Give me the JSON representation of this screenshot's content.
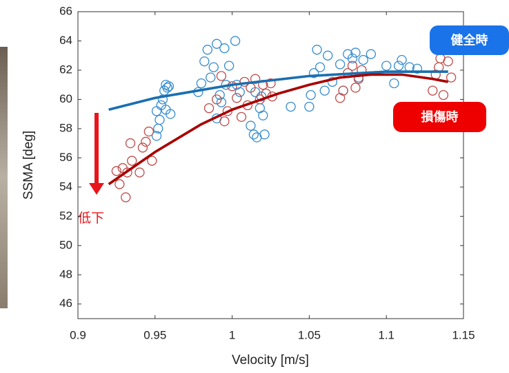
{
  "chart_data": {
    "type": "scatter",
    "x_label": "Velocity [m/s]",
    "y_label": "SSMA [deg]",
    "xlim": [
      0.9,
      1.15
    ],
    "xticks": [
      0.9,
      0.95,
      1,
      1.05,
      1.1,
      1.15
    ],
    "ylim": [
      45,
      66
    ],
    "yticks": [
      46,
      48,
      50,
      52,
      54,
      56,
      58,
      60,
      62,
      64,
      66
    ],
    "annotation": "低下",
    "series": [
      {
        "name": "健全時",
        "color": "#3b8fd1",
        "type": "scatter",
        "x": [
          0.951,
          0.952,
          0.953,
          0.951,
          0.954,
          0.955,
          0.956,
          0.957,
          0.958,
          0.959,
          0.96,
          0.957,
          0.978,
          0.98,
          0.982,
          0.984,
          0.986,
          0.988,
          0.99,
          0.992,
          0.993,
          0.995,
          0.996,
          0.998,
          1.002,
          1.003,
          1.005,
          0.99,
          1.012,
          1.014,
          1.016,
          1.018,
          1.019,
          1.021,
          1.02,
          1.015,
          1.038,
          1.05,
          1.051,
          1.053,
          1.055,
          1.057,
          1.06,
          1.062,
          1.065,
          1.07,
          1.072,
          1.075,
          1.078,
          1.08,
          1.082,
          1.085,
          1.09,
          1.1,
          1.105,
          1.108,
          1.11,
          1.115,
          1.12
        ],
        "values": [
          57.5,
          58,
          58.6,
          59.2,
          59.6,
          60,
          60.6,
          59.3,
          60.8,
          60.9,
          59,
          61,
          60.5,
          61.1,
          62.6,
          63.4,
          61.5,
          62.2,
          63.8,
          60.3,
          59.8,
          63.5,
          61,
          62.3,
          64,
          61,
          60.5,
          58.7,
          58.2,
          57.6,
          57.4,
          59.4,
          60.2,
          57.6,
          58.9,
          60.5,
          59.5,
          59.5,
          60.3,
          61.8,
          63.4,
          62.2,
          60.6,
          63,
          61.2,
          62.4,
          60.6,
          63.1,
          62.8,
          63.2,
          61.5,
          62.7,
          63.1,
          62.3,
          61.1,
          62.3,
          62.7,
          62.2,
          62.1
        ]
      },
      {
        "name": "損傷時",
        "color": "#c0504d",
        "type": "scatter",
        "x": [
          0.925,
          0.927,
          0.929,
          0.931,
          0.932,
          0.934,
          0.935,
          0.94,
          0.942,
          0.944,
          0.946,
          0.948,
          0.985,
          0.99,
          0.993,
          0.997,
          1.0,
          1.003,
          1.006,
          1.008,
          1.01,
          1.012,
          1.015,
          1.018,
          1.02,
          1.022,
          1.025,
          1.026,
          0.995,
          1.07,
          1.072,
          1.075,
          1.078,
          1.08,
          1.082,
          1.084,
          1.13,
          1.132,
          1.134,
          1.135,
          1.137,
          1.14,
          1.142
        ],
        "values": [
          55.1,
          54.2,
          55.3,
          53.3,
          55,
          57,
          55.8,
          55,
          56.7,
          57.1,
          57.8,
          55.8,
          59.4,
          60,
          61.6,
          59.2,
          60.9,
          60.1,
          58.8,
          61.2,
          59.6,
          60.8,
          61.4,
          60,
          61,
          60.4,
          61.1,
          60.2,
          58.5,
          60.1,
          60.6,
          61.8,
          62.3,
          60.8,
          61.4,
          62,
          60.6,
          61.7,
          62.2,
          62.8,
          60.3,
          62.6,
          61.5
        ]
      },
      {
        "color": "#1a6fb0",
        "type": "line",
        "x": [
          0.92,
          0.95,
          1.0,
          1.05,
          1.1,
          1.14
        ],
        "values": [
          59.3,
          60.1,
          61.0,
          61.6,
          61.9,
          61.9
        ]
      },
      {
        "color": "#a80000",
        "type": "line",
        "x": [
          0.92,
          0.95,
          0.98,
          1.0,
          1.03,
          1.05,
          1.07,
          1.09,
          1.11,
          1.13,
          1.14
        ],
        "values": [
          54.2,
          56.4,
          58.3,
          59.3,
          60.4,
          61.0,
          61.5,
          61.7,
          61.7,
          61.4,
          61.2
        ]
      }
    ]
  }
}
